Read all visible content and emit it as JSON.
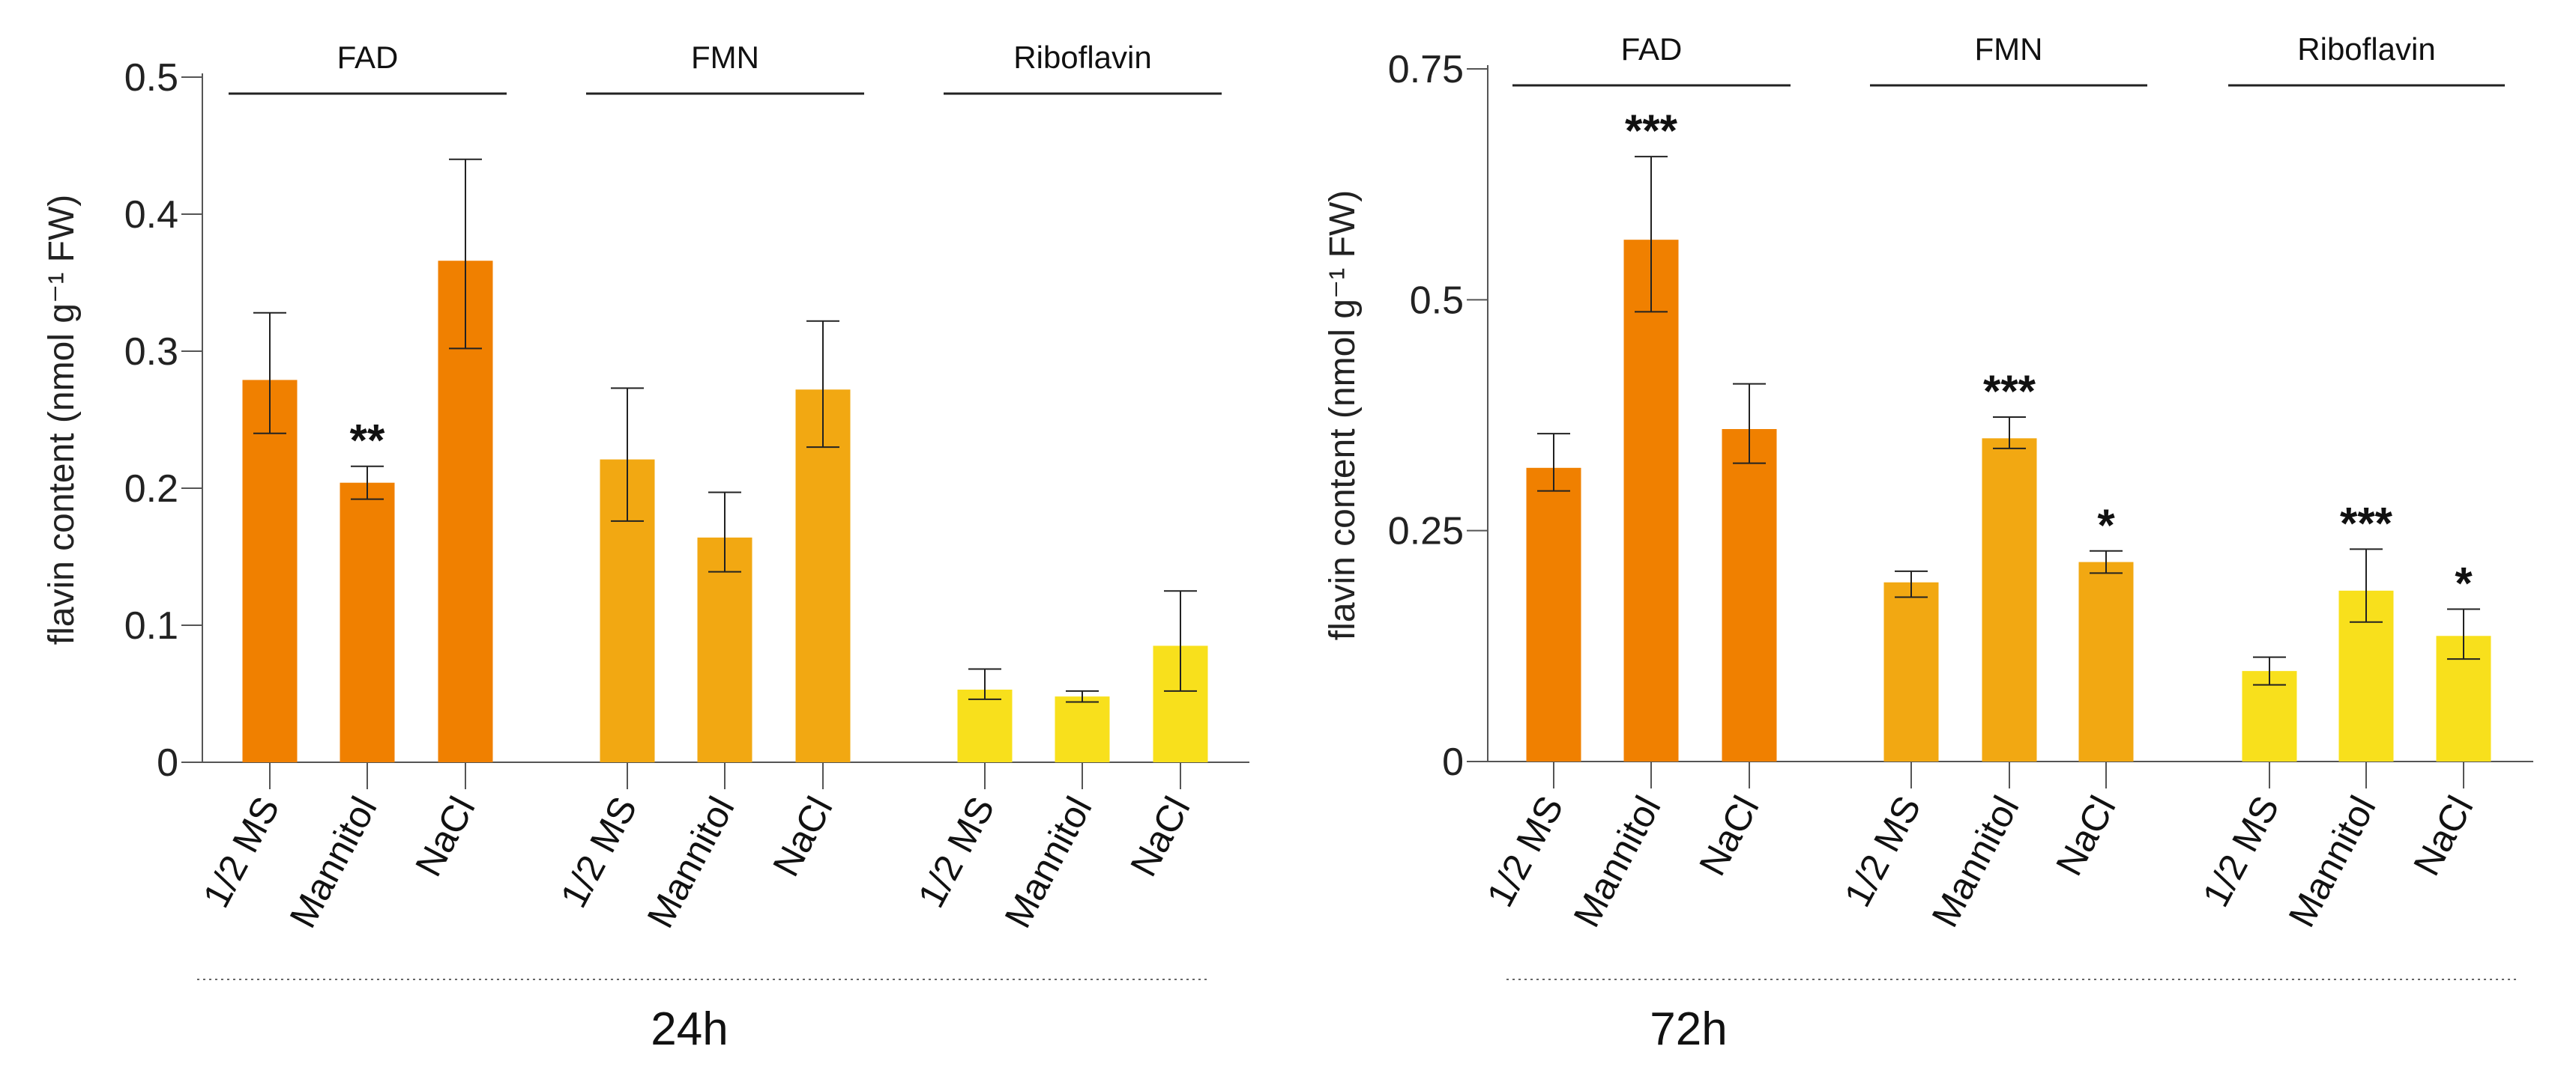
{
  "chart_data": [
    {
      "type": "bar",
      "title": "24h",
      "ylabel": "flavin content (nmol g⁻¹ FW)",
      "ylim": [
        0,
        0.5
      ],
      "yticks": [
        0,
        0.1,
        0.2,
        0.3,
        0.4,
        0.5
      ],
      "ytick_labels": [
        "0",
        "0.1",
        "0.2",
        "0.3",
        "0.4",
        "0.5"
      ],
      "groups": [
        {
          "name": "FAD",
          "color": "#f08000",
          "categories": [
            "1/2 MS",
            "Mannitol",
            "NaCl"
          ],
          "values": [
            0.279,
            0.204,
            0.366
          ],
          "err_low": [
            0.24,
            0.192,
            0.302
          ],
          "err_high": [
            0.328,
            0.216,
            0.44
          ],
          "significance": [
            "",
            "**",
            ""
          ]
        },
        {
          "name": "FMN",
          "color": "#f2a812",
          "categories": [
            "1/2 MS",
            "Mannitol",
            "NaCl"
          ],
          "values": [
            0.221,
            0.164,
            0.272
          ],
          "err_low": [
            0.176,
            0.139,
            0.23
          ],
          "err_high": [
            0.273,
            0.197,
            0.322
          ],
          "significance": [
            "",
            "",
            ""
          ]
        },
        {
          "name": "Riboflavin",
          "color": "#f8e01c",
          "categories": [
            "1/2 MS",
            "Mannitol",
            "NaCl"
          ],
          "values": [
            0.053,
            0.048,
            0.085
          ],
          "err_low": [
            0.046,
            0.044,
            0.052
          ],
          "err_high": [
            0.068,
            0.052,
            0.125
          ],
          "significance": [
            "",
            "",
            ""
          ]
        }
      ]
    },
    {
      "type": "bar",
      "title": "72h",
      "ylabel": "flavin content (nmol g⁻¹ FW)",
      "ylim": [
        0,
        0.75
      ],
      "yticks": [
        0,
        0.25,
        0.5,
        0.75
      ],
      "ytick_labels": [
        "0",
        "0.25",
        "0.5",
        "0.75"
      ],
      "groups": [
        {
          "name": "FAD",
          "color": "#f08000",
          "categories": [
            "1/2 MS",
            "Mannitol",
            "NaCl"
          ],
          "values": [
            0.318,
            0.565,
            0.36
          ],
          "err_low": [
            0.293,
            0.487,
            0.323
          ],
          "err_high": [
            0.355,
            0.655,
            0.409
          ],
          "significance": [
            "",
            "***",
            ""
          ]
        },
        {
          "name": "FMN",
          "color": "#f2a812",
          "categories": [
            "1/2 MS",
            "Mannitol",
            "NaCl"
          ],
          "values": [
            0.194,
            0.35,
            0.216
          ],
          "err_low": [
            0.178,
            0.339,
            0.204
          ],
          "err_high": [
            0.206,
            0.373,
            0.228
          ],
          "significance": [
            "",
            "***",
            "*"
          ]
        },
        {
          "name": "Riboflavin",
          "color": "#f8e01c",
          "categories": [
            "1/2 MS",
            "Mannitol",
            "NaCl"
          ],
          "values": [
            0.098,
            0.185,
            0.136
          ],
          "err_low": [
            0.083,
            0.151,
            0.111
          ],
          "err_high": [
            0.113,
            0.23,
            0.165
          ],
          "significance": [
            "",
            "***",
            "*"
          ]
        }
      ]
    }
  ]
}
